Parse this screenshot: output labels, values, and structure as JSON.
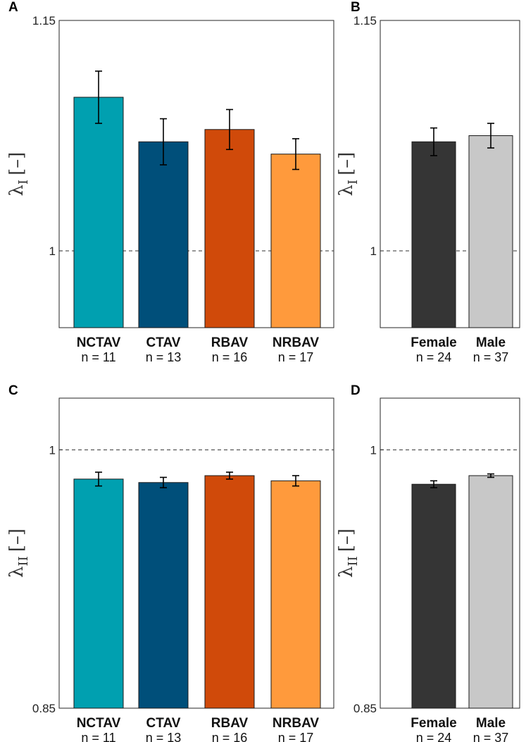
{
  "colors": {
    "NCTAV": "#00a0b0",
    "CTAV": "#004f7a",
    "RBAV": "#d04a0a",
    "NRBAV": "#ff9a3c",
    "Female": "#353535",
    "Male": "#c8c8c8"
  },
  "chart_data": [
    {
      "panel": "A",
      "type": "bar",
      "ylabel": "λ",
      "ylabel_sub": "I",
      "ylabel_unit": "[–]",
      "ylim": [
        0.95,
        1.15
      ],
      "yticks": [
        "1.15",
        "1"
      ],
      "ytick_values": [
        1.15,
        1.0
      ],
      "reference_line": 1.0,
      "categories": [
        "NCTAV",
        "CTAV",
        "RBAV",
        "NRBAV"
      ],
      "n_labels": [
        "n = 11",
        "n = 13",
        "n = 16",
        "n = 17"
      ],
      "values": [
        1.1,
        1.071,
        1.079,
        1.063
      ],
      "errors": [
        0.017,
        0.015,
        0.013,
        0.01
      ]
    },
    {
      "panel": "B",
      "type": "bar",
      "ylabel": "λ",
      "ylabel_sub": "I",
      "ylabel_unit": "[–]",
      "ylim": [
        0.95,
        1.15
      ],
      "yticks": [
        "1.15",
        "1"
      ],
      "ytick_values": [
        1.15,
        1.0
      ],
      "reference_line": 1.0,
      "categories": [
        "Female",
        "Male"
      ],
      "n_labels": [
        "n = 24",
        "n = 37"
      ],
      "values": [
        1.071,
        1.075
      ],
      "errors": [
        0.009,
        0.008
      ]
    },
    {
      "panel": "C",
      "type": "bar",
      "ylabel": "λ",
      "ylabel_sub": "II",
      "ylabel_unit": "[–]",
      "ylim": [
        0.85,
        1.03
      ],
      "yticks": [
        "1",
        "0.85"
      ],
      "ytick_values": [
        1.0,
        0.85
      ],
      "reference_line": 1.0,
      "categories": [
        "NCTAV",
        "CTAV",
        "RBAV",
        "NRBAV"
      ],
      "n_labels": [
        "n = 11",
        "n = 13",
        "n = 16",
        "n = 17"
      ],
      "values": [
        0.983,
        0.981,
        0.985,
        0.982
      ],
      "errors": [
        0.004,
        0.003,
        0.002,
        0.003
      ]
    },
    {
      "panel": "D",
      "type": "bar",
      "ylabel": "λ",
      "ylabel_sub": "II",
      "ylabel_unit": "[–]",
      "ylim": [
        0.85,
        1.03
      ],
      "yticks": [
        "1",
        "0.85"
      ],
      "ytick_values": [
        1.0,
        0.85
      ],
      "reference_line": 1.0,
      "categories": [
        "Female",
        "Male"
      ],
      "n_labels": [
        "n = 24",
        "n = 37"
      ],
      "values": [
        0.98,
        0.985
      ],
      "errors": [
        0.002,
        0.001
      ]
    }
  ]
}
